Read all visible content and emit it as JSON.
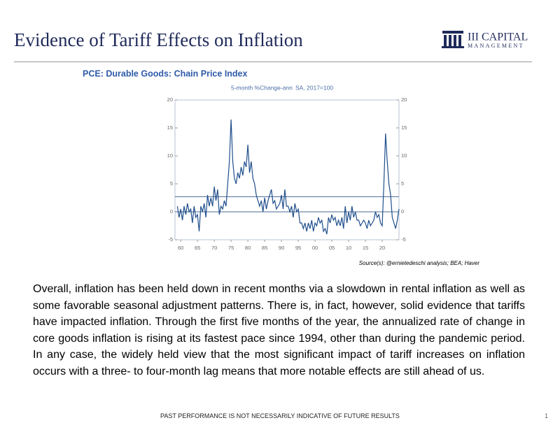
{
  "header": {
    "title": "Evidence of Tariff Effects on Inflation",
    "logo_line1": "III CAPITAL",
    "logo_line2": "MANAGEMENT"
  },
  "chart_data": {
    "type": "line",
    "title": "PCE: Durable Goods: Chain Price Index",
    "subtitle": "5-month %Change-ann",
    "subtitle2": "SA, 2017=100",
    "xlim": [
      1958.3,
      2025
    ],
    "ylim": [
      -5,
      20
    ],
    "xticks": [
      {
        "value": 1960,
        "label": "60"
      },
      {
        "value": 1965,
        "label": "65"
      },
      {
        "value": 1970,
        "label": "70"
      },
      {
        "value": 1975,
        "label": "75"
      },
      {
        "value": 1980,
        "label": "80"
      },
      {
        "value": 1985,
        "label": "85"
      },
      {
        "value": 1990,
        "label": "90"
      },
      {
        "value": 1995,
        "label": "95"
      },
      {
        "value": 2000,
        "label": "00"
      },
      {
        "value": 2005,
        "label": "05"
      },
      {
        "value": 2010,
        "label": "10"
      },
      {
        "value": 2015,
        "label": "15"
      },
      {
        "value": 2020,
        "label": "20"
      }
    ],
    "yticks": [
      -5,
      0,
      5,
      10,
      15,
      20
    ],
    "reference_lines": [
      0,
      2.7
    ],
    "series": [
      {
        "name": "PCE: Durable Goods",
        "color": "#1f4e8c",
        "x": [
          1959,
          1959.5,
          1960,
          1960.5,
          1961,
          1961.5,
          1962,
          1962.5,
          1963,
          1963.5,
          1964,
          1964.5,
          1965,
          1965.5,
          1966,
          1966.5,
          1967,
          1967.5,
          1968,
          1968.5,
          1969,
          1969.5,
          1970,
          1970.5,
          1971,
          1971.5,
          1972,
          1972.5,
          1973,
          1973.5,
          1974,
          1974.5,
          1975,
          1975.5,
          1976,
          1976.5,
          1977,
          1977.5,
          1978,
          1978.5,
          1979,
          1979.5,
          1980,
          1980.5,
          1981,
          1981.5,
          1982,
          1982.5,
          1983,
          1983.5,
          1984,
          1984.5,
          1985,
          1985.5,
          1986,
          1986.5,
          1987,
          1987.5,
          1988,
          1988.5,
          1989,
          1989.5,
          1990,
          1990.5,
          1991,
          1991.5,
          1992,
          1992.5,
          1993,
          1993.5,
          1994,
          1994.5,
          1995,
          1995.5,
          1996,
          1996.5,
          1997,
          1997.5,
          1998,
          1998.5,
          1999,
          1999.5,
          2000,
          2000.5,
          2001,
          2001.5,
          2002,
          2002.5,
          2003,
          2003.5,
          2004,
          2004.5,
          2005,
          2005.5,
          2006,
          2006.5,
          2007,
          2007.5,
          2008,
          2008.5,
          2009,
          2009.5,
          2010,
          2010.5,
          2011,
          2011.5,
          2012,
          2012.5,
          2013,
          2013.5,
          2014,
          2014.5,
          2015,
          2015.5,
          2016,
          2016.5,
          2017,
          2017.5,
          2018,
          2018.5,
          2019,
          2019.5,
          2020,
          2020.5,
          2021,
          2021.5,
          2022,
          2022.5,
          2023,
          2023.5,
          2024,
          2024.5,
          2025
        ],
        "values": [
          1,
          -1,
          0.5,
          -1.5,
          1,
          -0.5,
          1.5,
          0,
          0.5,
          -2,
          1,
          -1,
          -0.5,
          -3.5,
          1,
          0,
          1.5,
          -1,
          3,
          1,
          2.5,
          1,
          4.5,
          2,
          4,
          -0.5,
          1,
          0.5,
          2,
          1,
          5,
          9,
          16.5,
          9,
          6,
          5,
          7,
          6,
          8,
          6.5,
          9,
          8,
          12,
          7,
          9,
          6,
          5,
          3,
          2,
          1,
          2,
          0,
          2.5,
          0.5,
          2,
          3,
          4,
          1.5,
          2,
          0.5,
          1,
          1.5,
          3,
          0.5,
          4,
          1,
          1,
          0,
          1,
          -1,
          1.5,
          0,
          0.5,
          -2,
          -2,
          -3,
          -2,
          -3.5,
          -2,
          -3,
          -1.5,
          -3.5,
          -2,
          -2.5,
          -1,
          -2,
          -1.5,
          -3.5,
          -3,
          -4,
          -1,
          -2,
          -0.5,
          -1.5,
          -1,
          -2.5,
          -1.5,
          -2.5,
          -1,
          -3,
          1,
          -2,
          0,
          -1.5,
          1,
          -1,
          0,
          -1.5,
          -1.5,
          -2.5,
          -2,
          -1.5,
          -2,
          -3,
          -1.5,
          -2.5,
          -2,
          -1.5,
          0,
          -1,
          -0.5,
          -2,
          -2.5,
          5,
          14,
          9,
          5,
          3,
          -1,
          -2,
          -3,
          -1.5,
          0.5
        ]
      }
    ],
    "source": "Source(s): @ernietedeschi analysis; BEA; Haver"
  },
  "body": {
    "paragraph": "Overall, inflation has been held down in recent months via a slowdown in rental inflation as well as some favorable seasonal adjustment patterns. There is, in fact, however, solid evidence that tariffs have impacted inflation. Through the first five months of the year, the annualized rate of change in core goods inflation is rising at its fastest pace since 1994, other than during the pandemic period. In any case, the widely held view that the most significant impact of tariff increases on inflation occurs with a three- to four-month lag means that more notable effects are still ahead of us."
  },
  "footer": {
    "disclaimer": "PAST PERFORMANCE IS NOT NECESSARILY INDICATIVE OF FUTURE RESULTS",
    "page": "1"
  }
}
